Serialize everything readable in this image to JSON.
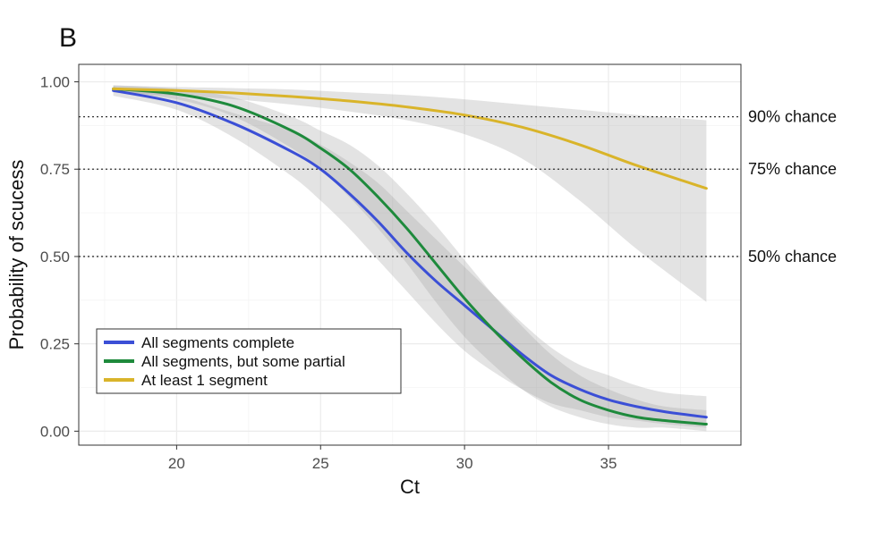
{
  "panel_label": "B",
  "chart_data": {
    "type": "line",
    "xlabel": "Ct",
    "ylabel": "Probability of scucess",
    "xlim": [
      16.6,
      39.6
    ],
    "ylim": [
      -0.04,
      1.05
    ],
    "x_ticks": [
      20,
      25,
      30,
      35
    ],
    "x_tick_labels": [
      "20",
      "25",
      "30",
      "35"
    ],
    "y_ticks": [
      0.0,
      0.25,
      0.5,
      0.75,
      1.0
    ],
    "y_tick_labels": [
      "0.00",
      "0.25",
      "0.50",
      "0.75",
      "1.00"
    ],
    "grid": true,
    "legend_position": "bottom-left",
    "reference_lines": [
      {
        "y": 0.9,
        "label": "90% chance"
      },
      {
        "y": 0.75,
        "label": "75% chance"
      },
      {
        "y": 0.5,
        "label": "50% chance"
      }
    ],
    "series": [
      {
        "name": "All segments complete",
        "color": "#3b4fd6",
        "x": [
          17.8,
          20,
          22,
          24,
          25,
          26,
          27,
          28,
          29,
          30,
          31,
          32,
          33,
          34,
          35,
          36,
          37,
          38.4
        ],
        "y": [
          0.975,
          0.94,
          0.88,
          0.8,
          0.75,
          0.68,
          0.6,
          0.51,
          0.43,
          0.36,
          0.29,
          0.22,
          0.16,
          0.12,
          0.09,
          0.07,
          0.055,
          0.04
        ],
        "ci_lower": [
          0.96,
          0.92,
          0.84,
          0.73,
          0.66,
          0.58,
          0.49,
          0.4,
          0.31,
          0.23,
          0.17,
          0.12,
          0.08,
          0.06,
          0.04,
          0.03,
          0.02,
          0.01
        ],
        "ci_upper": [
          0.985,
          0.96,
          0.91,
          0.86,
          0.82,
          0.77,
          0.71,
          0.63,
          0.55,
          0.47,
          0.39,
          0.31,
          0.24,
          0.19,
          0.16,
          0.13,
          0.11,
          0.1
        ]
      },
      {
        "name": "All segments, but some partial",
        "color": "#1e8a3c",
        "x": [
          17.8,
          20,
          22,
          24,
          25,
          26,
          27,
          28,
          29,
          30,
          31,
          32,
          33,
          34,
          35,
          36,
          37,
          38.4
        ],
        "y": [
          0.98,
          0.965,
          0.93,
          0.86,
          0.81,
          0.75,
          0.67,
          0.58,
          0.48,
          0.38,
          0.29,
          0.21,
          0.14,
          0.09,
          0.06,
          0.04,
          0.03,
          0.02
        ],
        "ci_lower": [
          0.97,
          0.95,
          0.9,
          0.81,
          0.75,
          0.67,
          0.58,
          0.48,
          0.37,
          0.27,
          0.19,
          0.12,
          0.07,
          0.04,
          0.02,
          0.01,
          0.01,
          0.0
        ],
        "ci_upper": [
          0.99,
          0.98,
          0.955,
          0.9,
          0.86,
          0.82,
          0.76,
          0.68,
          0.59,
          0.49,
          0.39,
          0.3,
          0.22,
          0.16,
          0.12,
          0.09,
          0.07,
          0.06
        ]
      },
      {
        "name": "At least 1 segment",
        "color": "#d9b42a",
        "x": [
          17.8,
          20,
          22,
          24,
          26,
          28,
          30,
          32,
          34,
          36,
          38.4
        ],
        "y": [
          0.98,
          0.975,
          0.968,
          0.958,
          0.945,
          0.928,
          0.905,
          0.87,
          0.82,
          0.76,
          0.695
        ],
        "ci_lower": [
          0.97,
          0.96,
          0.95,
          0.935,
          0.915,
          0.89,
          0.85,
          0.78,
          0.66,
          0.52,
          0.37
        ],
        "ci_upper": [
          0.99,
          0.985,
          0.982,
          0.978,
          0.97,
          0.962,
          0.95,
          0.935,
          0.92,
          0.905,
          0.89
        ]
      }
    ]
  }
}
